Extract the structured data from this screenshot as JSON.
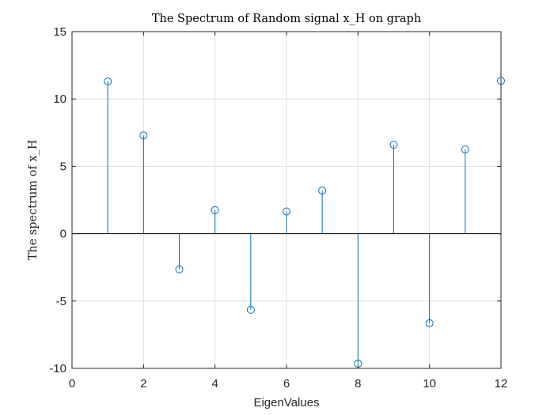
{
  "chart_data": {
    "type": "stem",
    "title": "The Spectrum of Random signal x_H on graph",
    "xlabel": "EigenValues",
    "ylabel": "The spectrum of x_H",
    "xlim": [
      0,
      12
    ],
    "ylim": [
      -10,
      15
    ],
    "x_ticks": [
      0,
      2,
      4,
      6,
      8,
      10,
      12
    ],
    "y_ticks": [
      -10,
      -5,
      0,
      5,
      10,
      15
    ],
    "x_tick_labels": [
      "0",
      "2",
      "4",
      "6",
      "8",
      "10",
      "12"
    ],
    "y_tick_labels": [
      "-10",
      "-5",
      "0",
      "5",
      "10",
      "15"
    ],
    "grid": true,
    "x": [
      1,
      2,
      3,
      4,
      5,
      6,
      7,
      8,
      9,
      10,
      11,
      12
    ],
    "values": [
      11.3,
      7.3,
      -2.65,
      1.75,
      -5.65,
      1.65,
      3.2,
      -9.65,
      6.6,
      -6.65,
      6.25,
      11.35
    ],
    "series_color": "#0072bd"
  }
}
